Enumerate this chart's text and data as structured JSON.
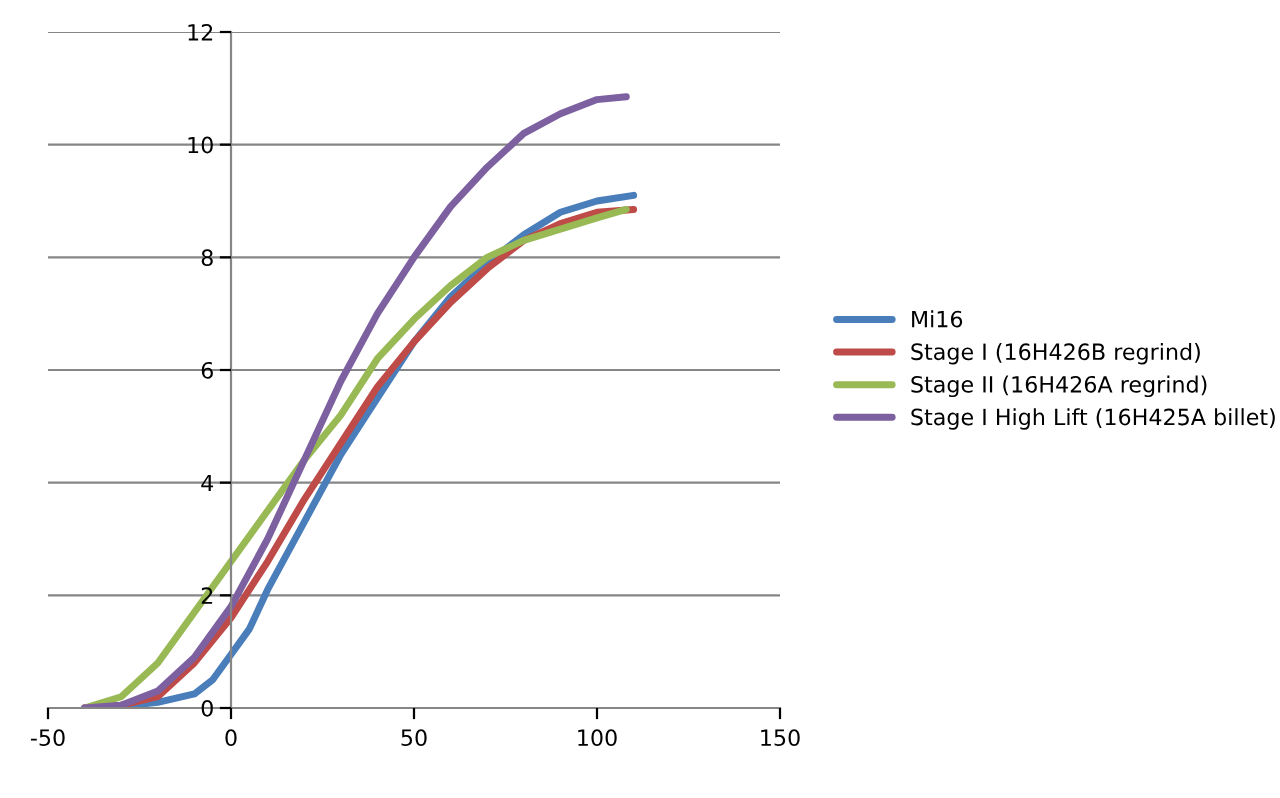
{
  "chart_data": {
    "type": "line",
    "xlim": [
      -50,
      150
    ],
    "xticks": [
      -50,
      0,
      50,
      100,
      150
    ],
    "ylim": [
      0,
      12
    ],
    "yticks": [
      0,
      2,
      4,
      6,
      8,
      10,
      12
    ],
    "grid": "y",
    "legend": "right",
    "series": [
      {
        "name": "Mi16",
        "color": "#4a7ebb",
        "x": [
          -40,
          -30,
          -20,
          -10,
          -5,
          0,
          5,
          10,
          20,
          30,
          40,
          50,
          60,
          70,
          80,
          90,
          100,
          110
        ],
        "values": [
          0,
          0.03,
          0.1,
          0.25,
          0.5,
          0.95,
          1.4,
          2.1,
          3.3,
          4.5,
          5.5,
          6.5,
          7.3,
          7.9,
          8.4,
          8.8,
          9.0,
          9.1
        ]
      },
      {
        "name": "Stage I (16H426B regrind)",
        "color": "#be4b48",
        "x": [
          -40,
          -30,
          -20,
          -10,
          0,
          10,
          20,
          30,
          40,
          50,
          60,
          70,
          80,
          90,
          100,
          110
        ],
        "values": [
          0,
          0.05,
          0.2,
          0.8,
          1.6,
          2.6,
          3.7,
          4.7,
          5.7,
          6.5,
          7.2,
          7.8,
          8.3,
          8.6,
          8.8,
          8.85
        ]
      },
      {
        "name": "Stage II (16H426A regrind)",
        "color": "#98b954",
        "x": [
          -40,
          -30,
          -20,
          -10,
          0,
          10,
          20,
          30,
          40,
          50,
          60,
          70,
          80,
          90,
          100,
          108
        ],
        "values": [
          0,
          0.2,
          0.8,
          1.7,
          2.6,
          3.5,
          4.4,
          5.2,
          6.2,
          6.9,
          7.5,
          8.0,
          8.3,
          8.5,
          8.7,
          8.85
        ]
      },
      {
        "name": "Stage I High Lift (16H425A billet)",
        "color": "#7d60a0",
        "x": [
          -40,
          -30,
          -20,
          -10,
          0,
          10,
          20,
          30,
          40,
          50,
          60,
          70,
          80,
          90,
          100,
          108
        ],
        "values": [
          0,
          0.05,
          0.3,
          0.9,
          1.8,
          3.0,
          4.4,
          5.8,
          7.0,
          8.0,
          8.9,
          9.6,
          10.2,
          10.55,
          10.8,
          10.85
        ]
      }
    ]
  }
}
